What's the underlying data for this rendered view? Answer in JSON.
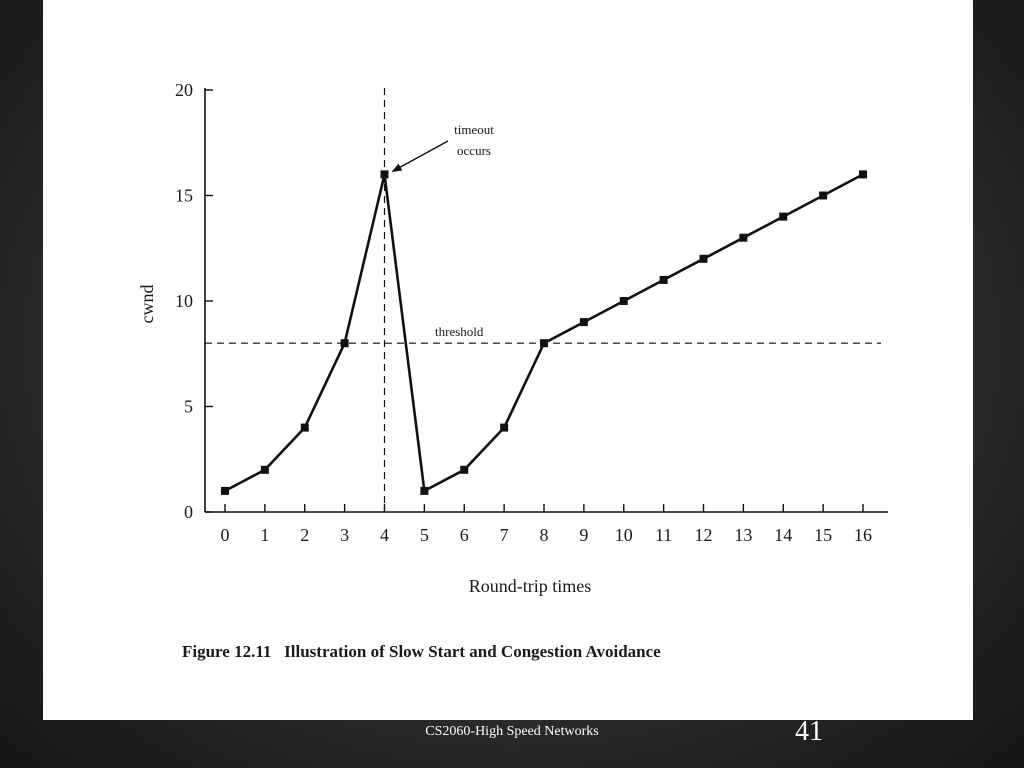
{
  "slide": {
    "footer": "CS2060-High Speed Networks",
    "page_number": "41"
  },
  "chart_data": {
    "type": "line",
    "title": "",
    "caption": "Figure 12.11   Illustration of Slow Start and Congestion Avoidance",
    "xlabel": "Round-trip times",
    "ylabel": "cwnd",
    "xlim": [
      0,
      16
    ],
    "ylim": [
      0,
      20
    ],
    "x_ticks": [
      0,
      1,
      2,
      3,
      4,
      5,
      6,
      7,
      8,
      9,
      10,
      11,
      12,
      13,
      14,
      15,
      16
    ],
    "y_ticks": [
      0,
      5,
      10,
      15,
      20
    ],
    "grid": false,
    "legend": "none",
    "series": [
      {
        "points": [
          [
            0,
            1
          ],
          [
            1,
            2
          ],
          [
            2,
            4
          ],
          [
            3,
            8
          ],
          [
            4,
            16
          ],
          [
            5,
            1
          ],
          [
            6,
            2
          ],
          [
            7,
            4
          ],
          [
            8,
            8
          ],
          [
            9,
            9
          ],
          [
            10,
            10
          ],
          [
            11,
            11
          ],
          [
            12,
            12
          ],
          [
            13,
            13
          ],
          [
            14,
            14
          ],
          [
            15,
            15
          ],
          [
            16,
            16
          ]
        ]
      }
    ],
    "threshold": {
      "value": 8,
      "label": "threshold"
    },
    "timeout": {
      "x": 4,
      "y": 16,
      "label_line1": "timeout",
      "label_line2": "occurs"
    },
    "colors": {
      "line": "#111111",
      "background": "#ffffff"
    }
  }
}
